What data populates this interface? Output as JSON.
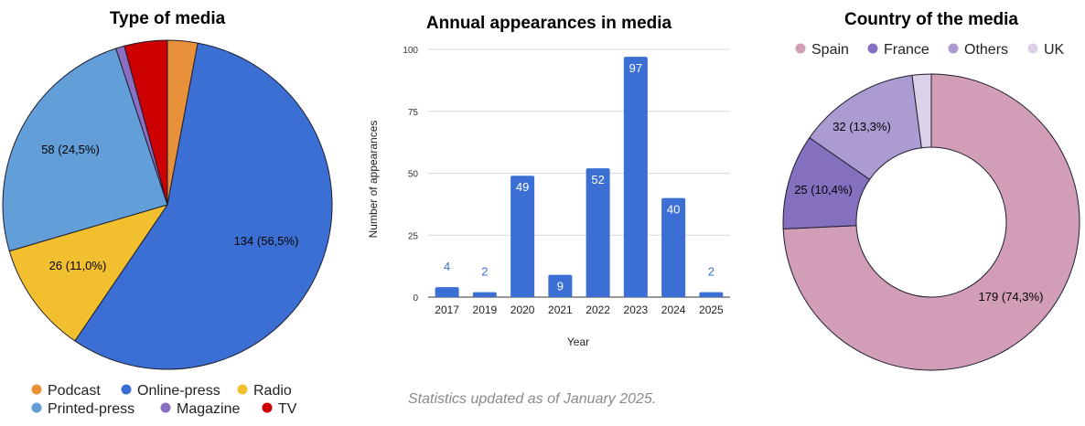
{
  "footer": "Statistics updated as of January 2025.",
  "chart_data": [
    {
      "type": "pie",
      "title": "Type of media",
      "slices": [
        {
          "name": "Podcast",
          "value": 7,
          "color": "#e8913a",
          "label": ""
        },
        {
          "name": "Online-press",
          "value": 134,
          "color": "#3b6fd4",
          "label": "134 (56,5%)"
        },
        {
          "name": "Radio",
          "value": 26,
          "color": "#f2bf2e",
          "label": "26 (11,0%)"
        },
        {
          "name": "Printed-press",
          "value": 58,
          "color": "#629fd8",
          "label": "58 (24,5%)"
        },
        {
          "name": "Magazine",
          "value": 2,
          "color": "#8a6fc2",
          "label": ""
        },
        {
          "name": "TV",
          "value": 10,
          "color": "#cc0000",
          "label": ""
        }
      ],
      "legend": {
        "position": "bottom",
        "items": [
          "Podcast",
          "Online-press",
          "Radio",
          "Printed-press",
          "Magazine",
          "TV"
        ]
      }
    },
    {
      "type": "bar",
      "title": "Annual appearances in media",
      "xlabel": "Year",
      "ylabel": "Number of appearances",
      "categories": [
        "2017",
        "2019",
        "2020",
        "2021",
        "2022",
        "2023",
        "2024",
        "2025"
      ],
      "values": [
        4,
        2,
        49,
        9,
        52,
        97,
        40,
        2
      ],
      "ylim": [
        0,
        100
      ],
      "yticks": [
        "0",
        "25",
        "50",
        "75",
        "100"
      ],
      "bar_color": "#3b6fd4",
      "grid": true
    },
    {
      "type": "pie",
      "title": "Country of the media",
      "donut": true,
      "slices": [
        {
          "name": "Spain",
          "value": 179,
          "color": "#d19db7",
          "label": "179 (74,3%)"
        },
        {
          "name": "France",
          "value": 25,
          "color": "#8570bf",
          "label": "25 (10,4%)"
        },
        {
          "name": "Others",
          "value": 32,
          "color": "#ab9bd1",
          "label": "32 (13,3%)"
        },
        {
          "name": "UK",
          "value": 5,
          "color": "#dbd2ea",
          "label": ""
        }
      ],
      "legend": {
        "position": "top",
        "items": [
          "Spain",
          "France",
          "Others",
          "UK"
        ]
      }
    }
  ]
}
